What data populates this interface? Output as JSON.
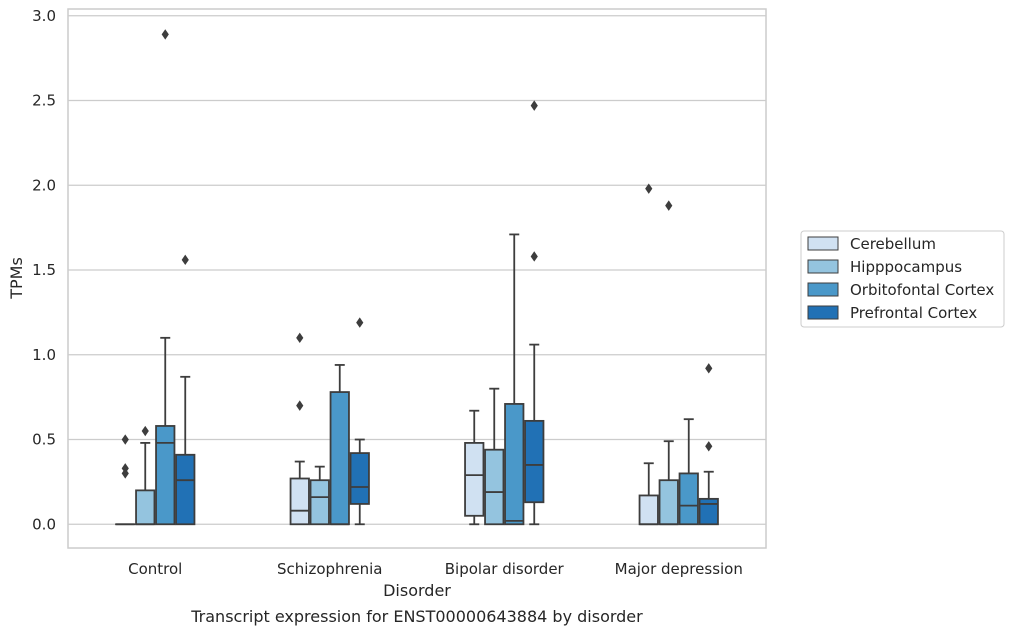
{
  "caption": "Transcript expression for ENST00000643884 by disorder",
  "chart_data": {
    "type": "box",
    "xlabel": "Disorder",
    "ylabel": "TPMs",
    "ylim": [
      -0.14,
      3.04
    ],
    "yticks": [
      0.0,
      0.5,
      1.0,
      1.5,
      2.0,
      2.5,
      3.0
    ],
    "ytick_labels": [
      "0.0",
      "0.5",
      "1.0",
      "1.5",
      "2.0",
      "2.5",
      "3.0"
    ],
    "grid": "horizontal",
    "legend_position": "right",
    "categories": [
      "Control",
      "Schizophrenia",
      "Bipolar disorder",
      "Major depression"
    ],
    "series": [
      {
        "name": "Cerebellum",
        "color": "#d0e1f2",
        "boxes": [
          {
            "whislo": 0.0,
            "q1": 0.0,
            "med": 0.0,
            "q3": 0.0,
            "whishi": 0.0,
            "fliers": [
              0.5,
              0.33,
              0.3
            ]
          },
          {
            "whislo": 0.0,
            "q1": 0.0,
            "med": 0.08,
            "q3": 0.27,
            "whishi": 0.37,
            "fliers": [
              1.1,
              0.7
            ]
          },
          {
            "whislo": 0.0,
            "q1": 0.05,
            "med": 0.29,
            "q3": 0.48,
            "whishi": 0.67,
            "fliers": []
          },
          {
            "whislo": 0.0,
            "q1": 0.0,
            "med": 0.0,
            "q3": 0.17,
            "whishi": 0.36,
            "fliers": [
              1.98
            ]
          }
        ]
      },
      {
        "name": "Hipppocampus",
        "color": "#94c4df",
        "boxes": [
          {
            "whislo": 0.0,
            "q1": 0.0,
            "med": 0.0,
            "q3": 0.2,
            "whishi": 0.48,
            "fliers": [
              0.55
            ]
          },
          {
            "whislo": 0.0,
            "q1": 0.0,
            "med": 0.16,
            "q3": 0.26,
            "whishi": 0.34,
            "fliers": []
          },
          {
            "whislo": 0.0,
            "q1": 0.0,
            "med": 0.19,
            "q3": 0.44,
            "whishi": 0.8,
            "fliers": []
          },
          {
            "whislo": 0.0,
            "q1": 0.0,
            "med": 0.0,
            "q3": 0.26,
            "whishi": 0.49,
            "fliers": [
              1.88
            ]
          }
        ]
      },
      {
        "name": "Orbitofontal Cortex",
        "color": "#4a98c9",
        "boxes": [
          {
            "whislo": 0.0,
            "q1": 0.0,
            "med": 0.48,
            "q3": 0.58,
            "whishi": 1.1,
            "fliers": [
              2.89
            ]
          },
          {
            "whislo": 0.0,
            "q1": 0.0,
            "med": 0.0,
            "q3": 0.78,
            "whishi": 0.94,
            "fliers": []
          },
          {
            "whislo": 0.0,
            "q1": 0.0,
            "med": 0.02,
            "q3": 0.71,
            "whishi": 1.71,
            "fliers": []
          },
          {
            "whislo": 0.0,
            "q1": 0.0,
            "med": 0.11,
            "q3": 0.3,
            "whishi": 0.62,
            "fliers": []
          }
        ]
      },
      {
        "name": "Prefrontal Cortex",
        "color": "#2171b5",
        "boxes": [
          {
            "whislo": 0.0,
            "q1": 0.0,
            "med": 0.26,
            "q3": 0.41,
            "whishi": 0.87,
            "fliers": [
              1.56
            ]
          },
          {
            "whislo": 0.0,
            "q1": 0.12,
            "med": 0.22,
            "q3": 0.42,
            "whishi": 0.5,
            "fliers": [
              1.19
            ]
          },
          {
            "whislo": 0.0,
            "q1": 0.13,
            "med": 0.35,
            "q3": 0.61,
            "whishi": 1.06,
            "fliers": [
              2.47,
              1.58
            ]
          },
          {
            "whislo": 0.0,
            "q1": 0.0,
            "med": 0.12,
            "q3": 0.15,
            "whishi": 0.31,
            "fliers": [
              0.92,
              0.46
            ]
          }
        ]
      }
    ]
  }
}
